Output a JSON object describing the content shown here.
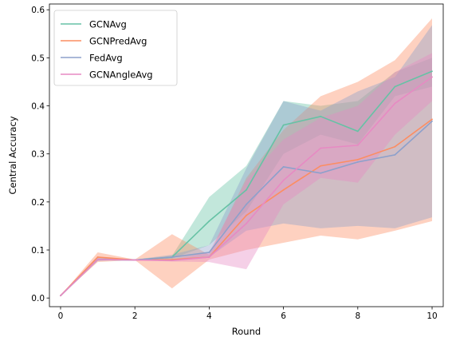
{
  "chart_data": {
    "type": "line",
    "xlabel": "Round",
    "ylabel": "Central Accuracy",
    "xlim": [
      -0.3,
      10.3
    ],
    "ylim": [
      -0.018,
      0.612
    ],
    "x_ticks": [
      0,
      2,
      4,
      6,
      8,
      10
    ],
    "y_ticks": [
      0.0,
      0.1,
      0.2,
      0.3,
      0.4,
      0.5,
      0.6
    ],
    "x_tick_labels": [
      "0",
      "2",
      "4",
      "6",
      "8",
      "10"
    ],
    "y_tick_labels": [
      "0.0",
      "0.1",
      "0.2",
      "0.3",
      "0.4",
      "0.5",
      "0.6"
    ],
    "grid": false,
    "legend_position": "top-left",
    "x": [
      0,
      1,
      2,
      3,
      4,
      5,
      6,
      7,
      8,
      9,
      10
    ],
    "series": [
      {
        "name": "GCNAvg",
        "color": "#66c2a5",
        "values": [
          0.005,
          0.08,
          0.079,
          0.085,
          0.16,
          0.225,
          0.36,
          0.378,
          0.347,
          0.44,
          0.472
        ],
        "lower": [
          0.005,
          0.078,
          0.079,
          0.082,
          0.11,
          0.18,
          0.3,
          0.34,
          0.32,
          0.42,
          0.44
        ],
        "upper": [
          0.005,
          0.083,
          0.08,
          0.088,
          0.21,
          0.275,
          0.41,
          0.4,
          0.41,
          0.47,
          0.5
        ]
      },
      {
        "name": "GCNPredAvg",
        "color": "#fc8d62",
        "values": [
          0.005,
          0.085,
          0.079,
          0.08,
          0.085,
          0.172,
          0.225,
          0.275,
          0.288,
          0.315,
          0.372
        ],
        "lower": [
          0.005,
          0.075,
          0.079,
          0.02,
          0.08,
          0.1,
          0.115,
          0.13,
          0.122,
          0.14,
          0.16
        ],
        "upper": [
          0.005,
          0.095,
          0.08,
          0.133,
          0.09,
          0.25,
          0.35,
          0.42,
          0.45,
          0.495,
          0.582
        ]
      },
      {
        "name": "FedAvg",
        "color": "#8da0cb",
        "values": [
          0.005,
          0.08,
          0.079,
          0.085,
          0.095,
          0.195,
          0.273,
          0.26,
          0.283,
          0.298,
          0.368
        ],
        "lower": [
          0.005,
          0.077,
          0.079,
          0.08,
          0.085,
          0.14,
          0.155,
          0.145,
          0.15,
          0.145,
          0.168
        ],
        "upper": [
          0.005,
          0.083,
          0.08,
          0.09,
          0.11,
          0.27,
          0.41,
          0.39,
          0.43,
          0.46,
          0.568
        ]
      },
      {
        "name": "GCNAngleAvg",
        "color": "#e78ac3",
        "values": [
          0.005,
          0.08,
          0.079,
          0.078,
          0.085,
          0.155,
          0.245,
          0.312,
          0.318,
          0.405,
          0.46
        ],
        "lower": [
          0.005,
          0.078,
          0.079,
          0.076,
          0.075,
          0.06,
          0.195,
          0.25,
          0.24,
          0.34,
          0.41
        ],
        "upper": [
          0.005,
          0.083,
          0.08,
          0.08,
          0.095,
          0.245,
          0.33,
          0.375,
          0.4,
          0.47,
          0.51
        ]
      }
    ]
  }
}
